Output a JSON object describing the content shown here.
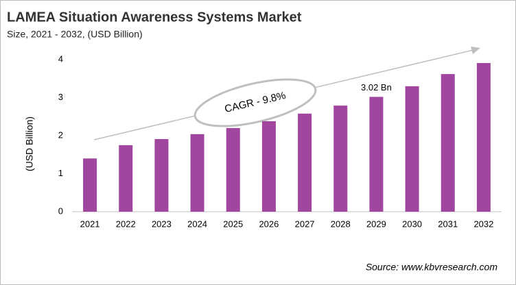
{
  "chart_data": {
    "type": "bar",
    "title": "LAMEA Situation Awareness Systems Market",
    "subtitle": "Size, 2021 - 2032, (USD Billion)",
    "y_label": "(USD Billion)",
    "annotation": "CAGR - 9.8%",
    "source": "Source: www.kbvresearch.com",
    "categories": [
      "2021",
      "2022",
      "2023",
      "2024",
      "2025",
      "2026",
      "2027",
      "2028",
      "2029",
      "2030",
      "2031",
      "2032"
    ],
    "values": [
      1.4,
      1.75,
      1.91,
      2.04,
      2.2,
      2.38,
      2.58,
      2.79,
      3.02,
      3.3,
      3.62,
      3.91
    ],
    "value_labels": [
      null,
      null,
      null,
      null,
      null,
      null,
      null,
      null,
      "3.02 Bn",
      null,
      null,
      null
    ],
    "color": "#a0469e",
    "ylim": [
      0,
      4
    ],
    "yticks": [
      0,
      1,
      2,
      3,
      4
    ],
    "grid": false
  }
}
